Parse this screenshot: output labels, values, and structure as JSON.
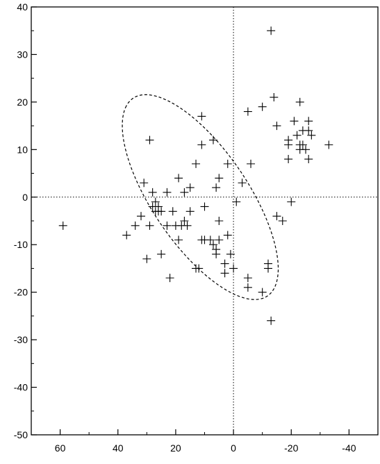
{
  "chart_data": {
    "type": "scatter",
    "title": "",
    "xlabel": "",
    "ylabel": "",
    "xlim": [
      70,
      -50
    ],
    "ylim": [
      -50,
      40
    ],
    "x_ticks": [
      60,
      40,
      20,
      0,
      -20,
      -40
    ],
    "x_tick_labels": [
      "60",
      "40",
      "20",
      "0",
      "-20",
      "-40"
    ],
    "y_ticks": [
      40,
      30,
      20,
      10,
      0,
      -10,
      -20,
      -30,
      -40,
      -50
    ],
    "y_tick_labels": [
      "40",
      "30",
      "20",
      "10",
      "0",
      "-10",
      "-20",
      "-30",
      "-40",
      "-50"
    ],
    "grid": false,
    "reference_lines": {
      "x": 0,
      "y": 0,
      "style": "dotted"
    },
    "marker": "plus",
    "color": "#000000",
    "series": [
      {
        "points": [
          [
            59,
            -6
          ],
          [
            37,
            -8
          ],
          [
            34,
            -6
          ],
          [
            32,
            -4
          ],
          [
            31,
            3
          ],
          [
            30,
            -13
          ],
          [
            29,
            12
          ],
          [
            29,
            -6
          ],
          [
            28,
            1
          ],
          [
            28,
            -2
          ],
          [
            27,
            -1
          ],
          [
            27,
            -3
          ],
          [
            26,
            -3
          ],
          [
            26,
            -2
          ],
          [
            25,
            -3
          ],
          [
            25,
            -12
          ],
          [
            23,
            1
          ],
          [
            23,
            -6
          ],
          [
            22,
            -17
          ],
          [
            21,
            -3
          ],
          [
            20,
            -6
          ],
          [
            19,
            4
          ],
          [
            19,
            -9
          ],
          [
            18,
            -6
          ],
          [
            17,
            1
          ],
          [
            17,
            -5
          ],
          [
            16,
            -6
          ],
          [
            15,
            2
          ],
          [
            15,
            -3
          ],
          [
            13,
            7
          ],
          [
            13,
            -15
          ],
          [
            12,
            -15
          ],
          [
            11,
            17
          ],
          [
            11,
            11
          ],
          [
            11,
            -9
          ],
          [
            10,
            -2
          ],
          [
            10,
            -9
          ],
          [
            8,
            -9
          ],
          [
            7,
            -10
          ],
          [
            7,
            12
          ],
          [
            6,
            2
          ],
          [
            6,
            -11
          ],
          [
            6,
            -12
          ],
          [
            5,
            4
          ],
          [
            5,
            -5
          ],
          [
            5,
            -9
          ],
          [
            3,
            -14
          ],
          [
            3,
            -16
          ],
          [
            2,
            7
          ],
          [
            2,
            -8
          ],
          [
            1,
            -12
          ],
          [
            0,
            -15
          ],
          [
            -1,
            -1
          ],
          [
            -3,
            3
          ],
          [
            -5,
            18
          ],
          [
            -5,
            -17
          ],
          [
            -5,
            -19
          ],
          [
            -6,
            7
          ],
          [
            -10,
            -20
          ],
          [
            -10,
            19
          ],
          [
            -12,
            -14
          ],
          [
            -12,
            -15
          ],
          [
            -13,
            35
          ],
          [
            -13,
            -26
          ],
          [
            -14,
            21
          ],
          [
            -15,
            15
          ],
          [
            -15,
            -4
          ],
          [
            -17,
            -5
          ],
          [
            -19,
            12
          ],
          [
            -19,
            11
          ],
          [
            -19,
            8
          ],
          [
            -20,
            -1
          ],
          [
            -21,
            16
          ],
          [
            -22,
            13
          ],
          [
            -23,
            11
          ],
          [
            -23,
            10
          ],
          [
            -23,
            20
          ],
          [
            -24,
            14
          ],
          [
            -24,
            11
          ],
          [
            -25,
            10
          ],
          [
            -26,
            16
          ],
          [
            -26,
            14
          ],
          [
            -26,
            8
          ],
          [
            -27,
            13
          ],
          [
            -33,
            11
          ]
        ]
      }
    ],
    "confidence_ellipse": {
      "center": [
        11.5,
        0
      ],
      "semi_axes": [
        32,
        13
      ],
      "angle_deg": 36,
      "style": "dashed"
    }
  }
}
